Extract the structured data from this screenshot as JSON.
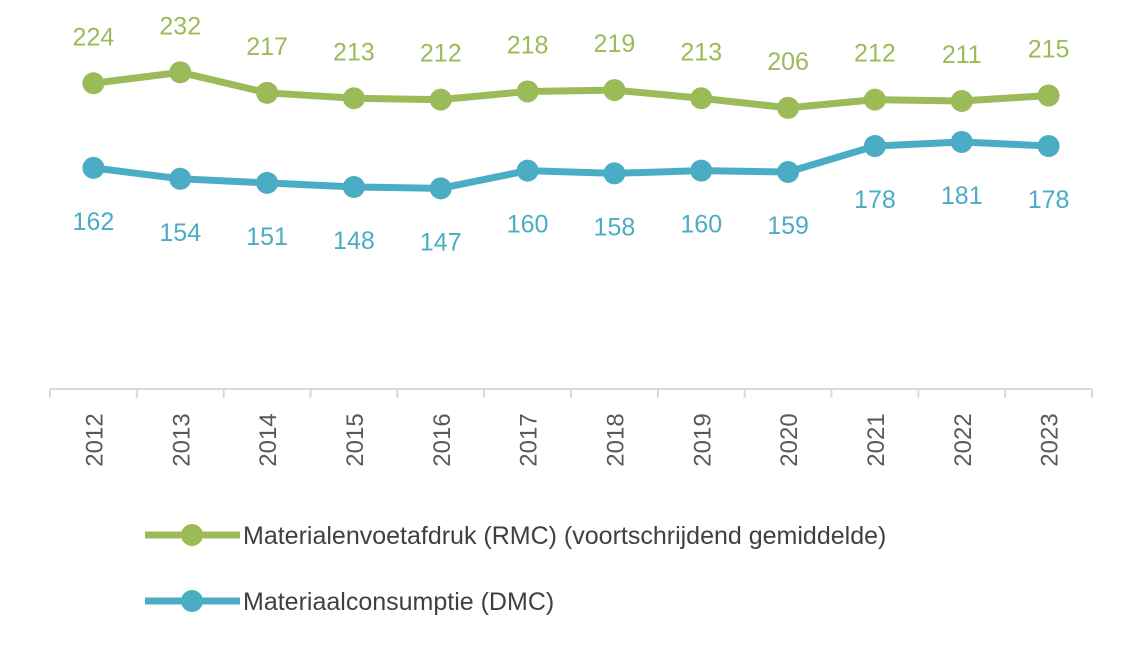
{
  "chart_data": {
    "type": "line",
    "title": "",
    "xlabel": "",
    "ylabel": "",
    "ylim": [
      0,
      285
    ],
    "grid": false,
    "legend_position": "bottom",
    "categories": [
      "2012",
      "2013",
      "2014",
      "2015",
      "2016",
      "2017",
      "2018",
      "2019",
      "2020",
      "2021",
      "2022",
      "2023"
    ],
    "series": [
      {
        "name": "Materialenvoetafdruk (RMC) (voortschrijdend gemiddelde)",
        "color": "#9BBB59",
        "label_position": "above",
        "values": [
          224,
          232,
          217,
          213,
          212,
          218,
          219,
          213,
          206,
          212,
          211,
          215
        ]
      },
      {
        "name": "Materiaalconsumptie (DMC)",
        "color": "#4BACC6",
        "label_position": "below",
        "values": [
          162,
          154,
          151,
          148,
          147,
          160,
          158,
          160,
          159,
          178,
          181,
          178
        ]
      }
    ]
  }
}
